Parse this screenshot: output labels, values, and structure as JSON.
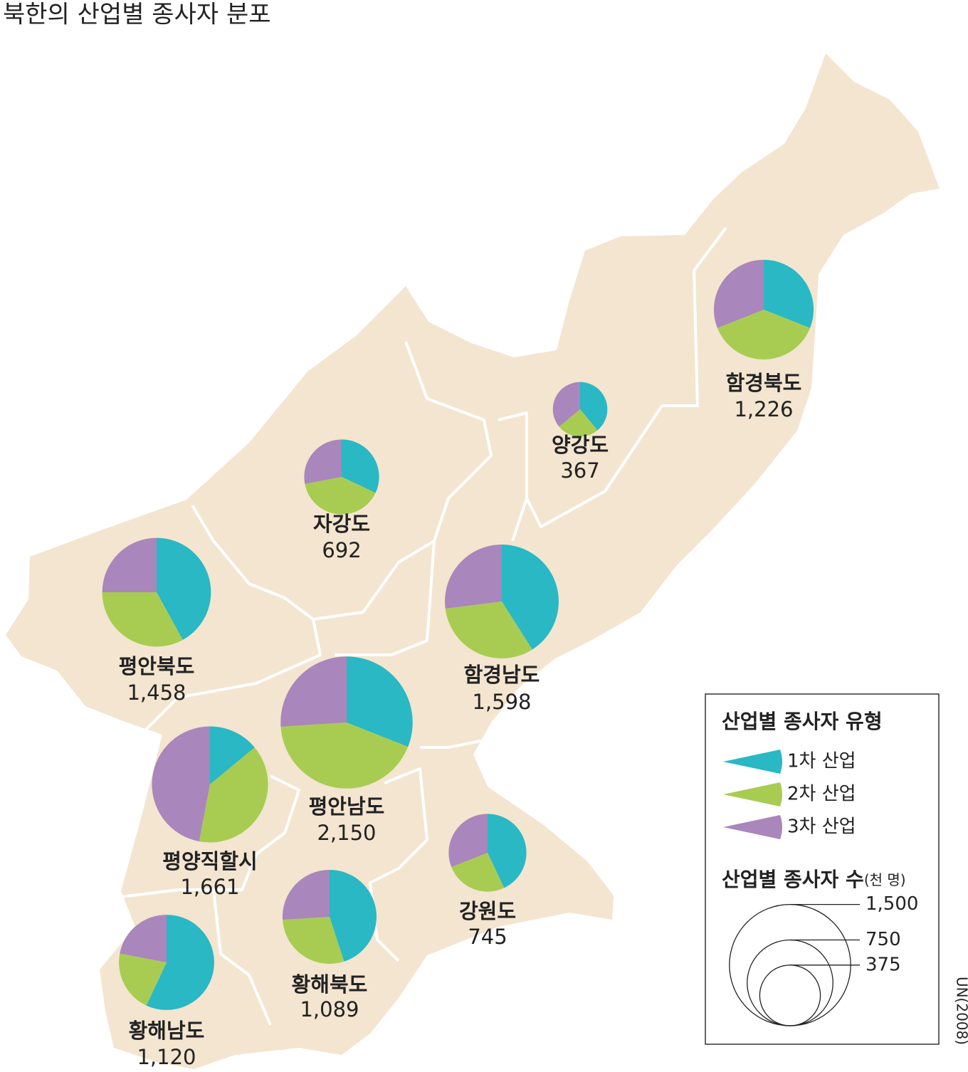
{
  "title": "북한의 산업별 종사자 분포",
  "legend": {
    "title": "산업별 종사자 유형",
    "types": [
      {
        "label": "1차 산업",
        "color": "#29b8c4"
      },
      {
        "label": "2차 산업",
        "color": "#a8cc52"
      },
      {
        "label": "3차 산업",
        "color": "#a986bb"
      }
    ],
    "size_title": "산업별 종사자 수",
    "size_unit": "(천 명)",
    "sizes": [
      {
        "value": 1500,
        "label": "1,500"
      },
      750,
      375
    ]
  },
  "source": "UN(2008)",
  "regions": [
    {
      "name": "함경북도",
      "total": {
        "value": 1226,
        "label": "1,226"
      },
      "shares": [
        31,
        38,
        31
      ]
    },
    {
      "name": "양강도",
      "total": 367,
      "shares": [
        39,
        25,
        36
      ]
    },
    {
      "name": "자강도",
      "total": 692,
      "shares": [
        32,
        40,
        28
      ]
    },
    {
      "name": "평안북도",
      "total": {
        "value": 1458,
        "label": "1,458"
      },
      "shares": [
        42,
        33,
        25
      ]
    },
    {
      "name": "함경남도",
      "total": {
        "value": 1598,
        "label": "1,598"
      },
      "shares": [
        41,
        32,
        27
      ]
    },
    {
      "name": "평안남도",
      "total": {
        "value": 2150,
        "label": "2,150"
      },
      "shares": [
        31,
        43,
        26
      ]
    },
    {
      "name": "평양직할시",
      "total": {
        "value": 1661,
        "label": "1,661"
      },
      "shares": [
        14,
        39,
        47
      ]
    },
    {
      "name": "강원도",
      "total": 745,
      "shares": [
        43,
        26,
        31
      ]
    },
    {
      "name": "황해북도",
      "total": {
        "value": 1089,
        "label": "1,089"
      },
      "shares": [
        45,
        29,
        26
      ]
    },
    {
      "name": "황해남도",
      "total": {
        "value": 1120,
        "label": "1,120"
      },
      "shares": [
        57,
        21,
        22
      ]
    }
  ]
}
